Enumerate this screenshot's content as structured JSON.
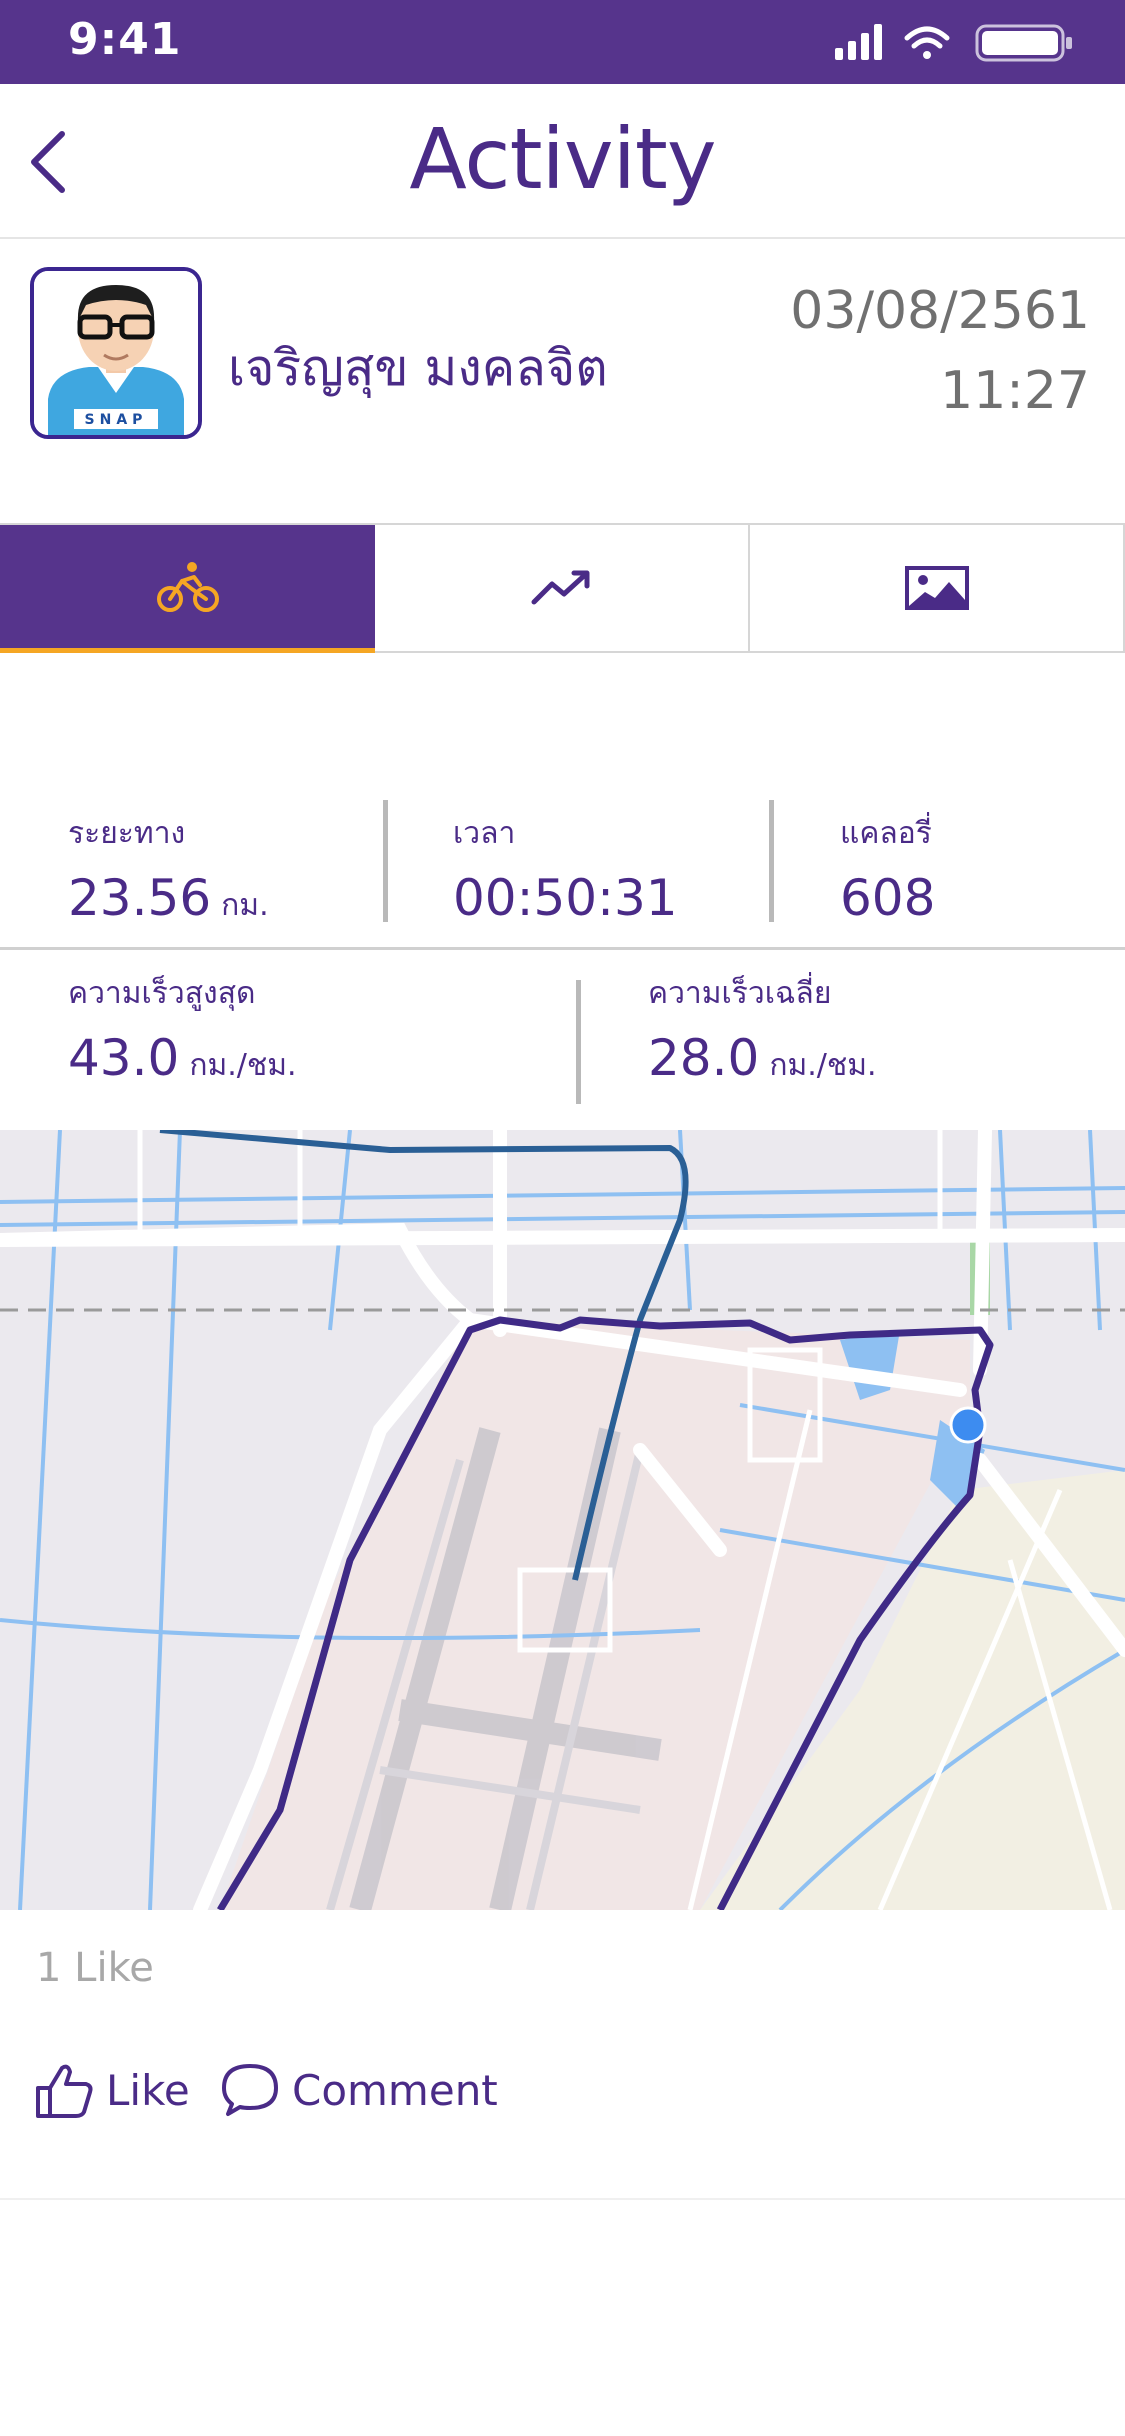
{
  "status_bar": {
    "time": "9:41"
  },
  "header": {
    "title": "Activity"
  },
  "profile": {
    "name": "เจริญสุข มงคลจิต",
    "date": "03/08/2561",
    "time": "11:27",
    "avatar_badge": "SNAP"
  },
  "tabs": [
    {
      "name": "bike",
      "icon": "bicycle-icon",
      "active": true
    },
    {
      "name": "trend",
      "icon": "trend-chart-icon",
      "active": false
    },
    {
      "name": "photo",
      "icon": "image-icon",
      "active": false
    }
  ],
  "stats": {
    "distance": {
      "label": "ระยะทาง",
      "value": "23.56",
      "unit": "กม."
    },
    "duration": {
      "label": "เวลา",
      "value": "00:50:31"
    },
    "calories": {
      "label": "แคลอรี่",
      "value": "608"
    },
    "max_speed": {
      "label": "ความเร็วสูงสุด",
      "value": "43.0",
      "unit": "กม./ชม."
    },
    "avg_speed": {
      "label": "ความเร็วเฉลี่ย",
      "value": "28.0",
      "unit": "กม./ชม."
    }
  },
  "social": {
    "like_count": "1 Like",
    "like_label": "Like",
    "comment_label": "Comment"
  },
  "colors": {
    "brand": "#56348c",
    "accent": "#f5a623",
    "route": "#3f2a86",
    "route_secondary": "#2a5f95",
    "location_dot": "#3d8cf0"
  }
}
